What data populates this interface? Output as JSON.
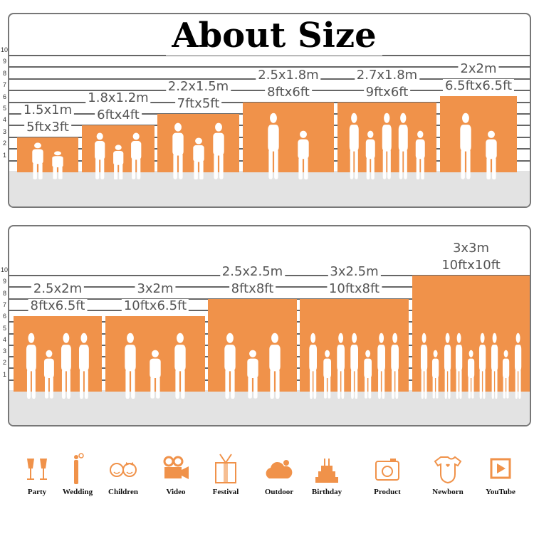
{
  "title": "About Size",
  "accent_color": "#f0924a",
  "scale_ticks": [
    "1",
    "2",
    "3",
    "4",
    "5",
    "6",
    "7",
    "8",
    "9",
    "10"
  ],
  "top_sizes": [
    {
      "metric": "1.5x1m",
      "imperial": "5ftx3ft",
      "height_ft": 3,
      "people": 2
    },
    {
      "metric": "1.8x1.2m",
      "imperial": "6ftx4ft",
      "height_ft": 4,
      "people": 3
    },
    {
      "metric": "2.2x1.5m",
      "imperial": "7ftx5ft",
      "height_ft": 5,
      "people": 3
    },
    {
      "metric": "2.5x1.8m",
      "imperial": "8ftx6ft",
      "height_ft": 6,
      "people": 2
    },
    {
      "metric": "2.7x1.8m",
      "imperial": "9ftx6ft",
      "height_ft": 6,
      "people": 5
    },
    {
      "metric": "2x2m",
      "imperial": "6.5ftx6.5ft",
      "height_ft": 6.5,
      "people": 2
    }
  ],
  "bottom_sizes": [
    {
      "metric": "2.5x2m",
      "imperial": "8ftx6.5ft",
      "height_ft": 6.5,
      "people": 4
    },
    {
      "metric": "3x2m",
      "imperial": "10ftx6.5ft",
      "height_ft": 6.5,
      "people": 3
    },
    {
      "metric": "2.5x2.5m",
      "imperial": "8ftx8ft",
      "height_ft": 8,
      "people": 3
    },
    {
      "metric": "3x2.5m",
      "imperial": "10ftx8ft",
      "height_ft": 8,
      "people": 7
    },
    {
      "metric": "3x3m",
      "imperial": "10ftx10ft",
      "height_ft": 10,
      "people": 9
    }
  ],
  "uses": [
    {
      "label": "Party",
      "icon": "wine-glasses-icon"
    },
    {
      "label": "Wedding",
      "icon": "wedding-couple-icon"
    },
    {
      "label": "Children",
      "icon": "children-faces-icon"
    },
    {
      "label": "Video",
      "icon": "video-camera-icon"
    },
    {
      "label": "Festival",
      "icon": "gift-box-icon"
    },
    {
      "label": "Outdoor",
      "icon": "cloud-icon"
    },
    {
      "label": "Birthday",
      "icon": "birthday-cake-icon"
    },
    {
      "label": "Product",
      "icon": "camera-icon"
    },
    {
      "label": "Newborn",
      "icon": "baby-onesie-icon"
    },
    {
      "label": "YouTube",
      "icon": "play-button-icon"
    }
  ]
}
